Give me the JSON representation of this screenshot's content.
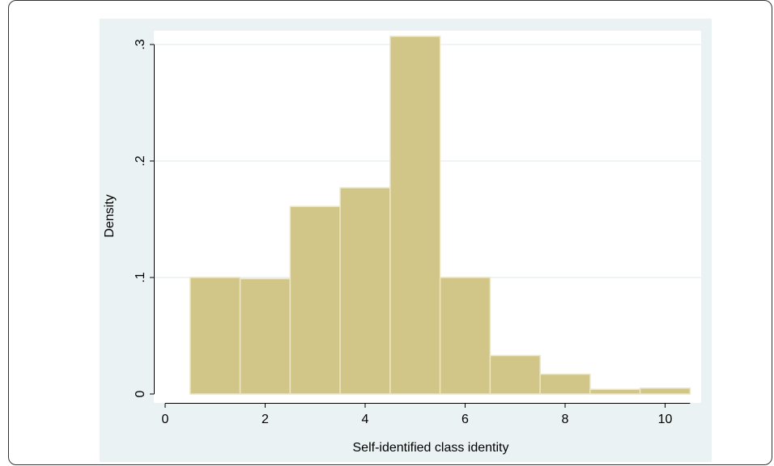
{
  "chart_data": {
    "type": "bar",
    "title": "",
    "xlabel": "Self-identified class identity",
    "ylabel": "Density",
    "bin_width": 1,
    "xlim": [
      0,
      11
    ],
    "ylim": [
      0,
      0.31
    ],
    "xticks": [
      0,
      2,
      4,
      6,
      8,
      10
    ],
    "xtick_labels": [
      "0",
      "2",
      "4",
      "6",
      "8",
      "10"
    ],
    "yticks": [
      0,
      0.1,
      0.2,
      0.3
    ],
    "ytick_labels": [
      "0",
      ".1",
      ".2",
      ".3"
    ],
    "grid": true,
    "legend": "none",
    "bins": [
      1,
      2,
      3,
      4,
      5,
      6,
      7,
      8,
      9,
      10
    ],
    "values": [
      0.1,
      0.099,
      0.161,
      0.177,
      0.307,
      0.1,
      0.033,
      0.017,
      0.004,
      0.005
    ],
    "colors": {
      "bar_fill": "#d1c688",
      "bar_edge": "#ece6c4",
      "plot_background": "#eaf2f3",
      "inner_background": "#ffffff",
      "grid": "#eaf2f3",
      "axis": "#000000"
    }
  }
}
